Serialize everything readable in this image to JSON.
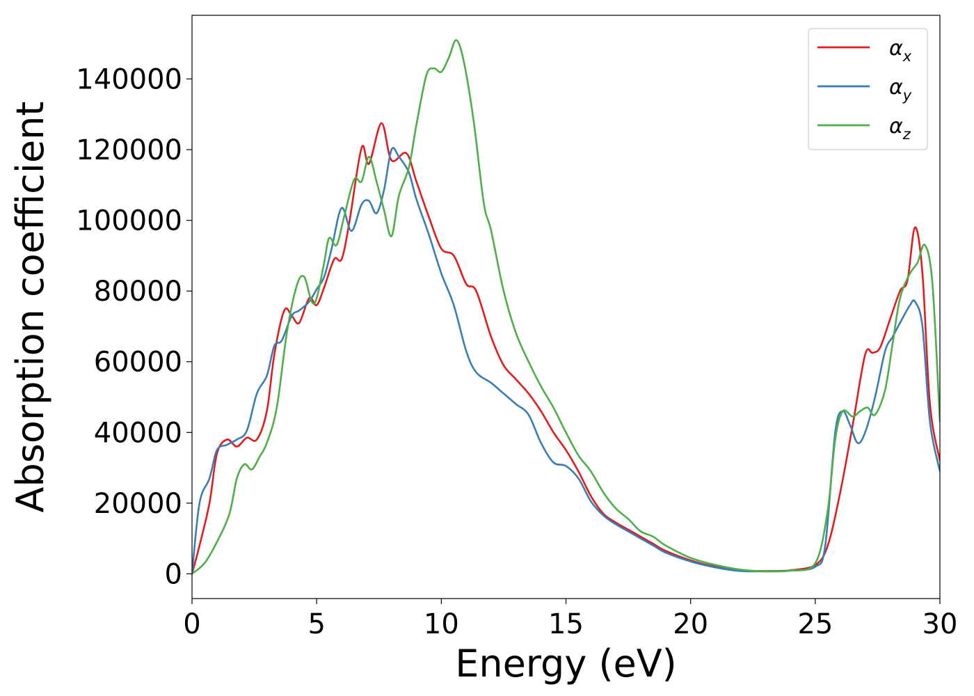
{
  "chart_data": {
    "type": "line",
    "xlabel": "Energy (eV)",
    "ylabel": "Absorption coefficient",
    "xlim": [
      0,
      30
    ],
    "ylim": [
      -7000,
      158000
    ],
    "xticks": [
      0,
      5,
      10,
      15,
      20,
      25,
      30
    ],
    "xtick_labels": [
      "0",
      "5",
      "10",
      "15",
      "20",
      "25",
      "30"
    ],
    "yticks": [
      0,
      20000,
      40000,
      60000,
      80000,
      100000,
      120000,
      140000
    ],
    "ytick_labels": [
      "0",
      "20000",
      "40000",
      "60000",
      "80000",
      "100000",
      "120000",
      "140000"
    ],
    "grid": false,
    "legend_position": "top-right",
    "series": [
      {
        "name": "α",
        "subscript": "x",
        "color": "#e41a1c",
        "x": [
          0,
          0.3,
          0.7,
          1.0,
          1.4,
          1.8,
          2.2,
          2.6,
          3.0,
          3.3,
          3.7,
          4.0,
          4.3,
          4.7,
          5.0,
          5.3,
          5.7,
          6.0,
          6.3,
          6.8,
          7.1,
          7.6,
          8.0,
          8.6,
          9.0,
          9.5,
          10.0,
          10.5,
          11.0,
          11.4,
          12.0,
          12.5,
          13.0,
          13.5,
          14.0,
          14.5,
          15.0,
          15.5,
          16.0,
          16.5,
          17.0,
          17.5,
          18.0,
          18.5,
          19.0,
          20.0,
          21.0,
          22.0,
          23.0,
          24.0,
          25.0,
          25.5,
          26.0,
          26.5,
          27.0,
          27.3,
          27.6,
          28.0,
          28.4,
          28.7,
          29.0,
          29.3,
          29.6,
          30.0
        ],
        "y": [
          0,
          8000,
          20000,
          34000,
          38000,
          36000,
          38500,
          38000,
          46000,
          62000,
          74500,
          73000,
          71000,
          78000,
          76000,
          81000,
          89000,
          89000,
          99000,
          120500,
          116000,
          127500,
          117000,
          119000,
          111000,
          101000,
          92000,
          90000,
          82000,
          80000,
          67000,
          59000,
          55000,
          51000,
          46000,
          40000,
          35000,
          29000,
          22000,
          17000,
          14500,
          12500,
          10500,
          8500,
          6500,
          3800,
          2000,
          1000,
          800,
          1000,
          2500,
          8000,
          23000,
          42000,
          62000,
          62500,
          64000,
          72000,
          80000,
          83000,
          98000,
          85000,
          48000,
          32000
        ]
      },
      {
        "name": "α",
        "subscript": "y",
        "color": "#377eb8",
        "x": [
          0,
          0.3,
          0.7,
          1.0,
          1.4,
          1.8,
          2.2,
          2.6,
          3.0,
          3.3,
          3.6,
          4.0,
          4.3,
          4.7,
          5.0,
          5.3,
          5.6,
          6.0,
          6.4,
          6.8,
          7.1,
          7.4,
          7.7,
          8.0,
          8.3,
          8.7,
          9.0,
          9.5,
          10.0,
          10.5,
          11.0,
          11.4,
          12.0,
          12.5,
          13.0,
          13.5,
          14.0,
          14.5,
          15.0,
          15.5,
          16.0,
          16.5,
          17.0,
          17.5,
          18.0,
          18.5,
          19.0,
          20.0,
          21.0,
          22.0,
          23.0,
          24.0,
          25.0,
          25.4,
          25.8,
          26.1,
          26.4,
          26.7,
          27.0,
          27.4,
          27.8,
          28.1,
          28.4,
          28.8,
          29.0,
          29.3,
          29.6,
          30.0
        ],
        "y": [
          0,
          20000,
          27000,
          35000,
          36500,
          38000,
          40500,
          51000,
          56000,
          64500,
          66000,
          73000,
          74500,
          77000,
          80500,
          84000,
          92000,
          103500,
          97000,
          104500,
          105500,
          102000,
          108500,
          120000,
          118000,
          113500,
          106000,
          96000,
          85000,
          76000,
          63000,
          57000,
          54000,
          51000,
          48000,
          45000,
          37000,
          31500,
          30500,
          27000,
          20500,
          16500,
          14000,
          12000,
          10000,
          8000,
          6000,
          3500,
          1800,
          800,
          700,
          900,
          2000,
          8000,
          40000,
          46000,
          42000,
          37000,
          40000,
          50000,
          63000,
          67000,
          71000,
          76000,
          77000,
          70000,
          43000,
          29000
        ]
      },
      {
        "name": "α",
        "subscript": "z",
        "color": "#4daf4a",
        "x": [
          0,
          0.5,
          1.0,
          1.5,
          1.8,
          2.1,
          2.4,
          2.7,
          3.0,
          3.4,
          3.8,
          4.2,
          4.5,
          4.8,
          5.0,
          5.3,
          5.5,
          5.8,
          6.1,
          6.5,
          6.8,
          7.1,
          7.4,
          7.7,
          8.0,
          8.3,
          8.7,
          9.0,
          9.4,
          9.7,
          10.0,
          10.3,
          10.6,
          10.9,
          11.3,
          11.7,
          12.0,
          12.5,
          13.0,
          13.5,
          14.0,
          14.5,
          15.0,
          15.5,
          16.0,
          16.5,
          17.0,
          17.5,
          18.0,
          18.5,
          19.0,
          20.0,
          21.0,
          22.0,
          23.0,
          24.0,
          25.0,
          25.5,
          25.8,
          26.1,
          26.5,
          26.8,
          27.1,
          27.4,
          27.8,
          28.1,
          28.4,
          28.8,
          29.1,
          29.4,
          29.7,
          30.0
        ],
        "y": [
          0,
          3000,
          9000,
          17000,
          27000,
          31000,
          29500,
          33000,
          37000,
          47000,
          68000,
          81500,
          84000,
          77000,
          78000,
          88000,
          95000,
          93000,
          101000,
          111500,
          111000,
          118000,
          111000,
          103000,
          95500,
          107000,
          115000,
          127000,
          141000,
          143000,
          142000,
          146000,
          151000,
          145000,
          128000,
          105000,
          97000,
          80000,
          68000,
          60000,
          53000,
          47000,
          40000,
          33500,
          29000,
          23000,
          18500,
          15500,
          12000,
          10500,
          8000,
          4500,
          2500,
          1200,
          700,
          900,
          3000,
          18000,
          38000,
          46000,
          44500,
          46000,
          47000,
          45000,
          52000,
          65000,
          78000,
          85000,
          88000,
          93000,
          82000,
          43000
        ]
      }
    ]
  }
}
